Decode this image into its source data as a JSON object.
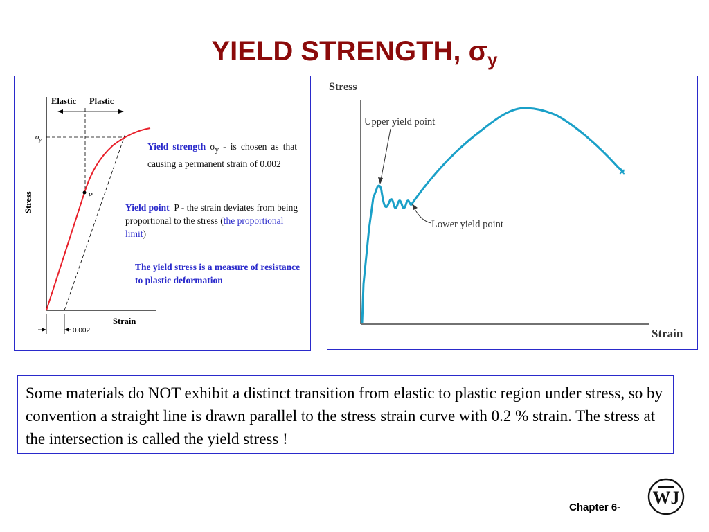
{
  "slide": {
    "title_main": "YIELD STRENGTH, ",
    "title_sigma": "σ",
    "title_sub": "y",
    "chapter_label": "Chapter 6-",
    "logo_letters": "WJ"
  },
  "left_diagram": {
    "elastic_label": "Elastic",
    "plastic_label": "Plastic",
    "sigma_axis_label": "σ",
    "sigma_axis_sub": "y",
    "stress_label": "Stress",
    "strain_label": "Strain",
    "p_label": "P",
    "offset_label": "0.002",
    "yield_strength_term": "Yield strength",
    "yield_strength_sigma": "σ",
    "yield_strength_sub": "y",
    "yield_strength_text": " - is chosen as that causing a permanent strain of 0.002",
    "yield_point_term": "Yield point",
    "yield_point_text_1": "P",
    "yield_point_text_2": " - the strain deviates from being proportional to the stress (",
    "proportional_limit": "the proportional limit",
    "yield_point_close": ")",
    "measure_text": "The yield stress is a measure of resistance to plastic deformation",
    "curve_color": "#e8202a"
  },
  "right_diagram": {
    "stress_label": "Stress",
    "strain_label": "Strain",
    "upper_yield_label": "Upper yield point",
    "lower_yield_label": "Lower yield point",
    "end_marker": "×",
    "curve_color": "#1aa0c8"
  },
  "info_box": {
    "text": "Some materials do NOT exhibit a distinct transition from elastic to plastic region under stress, so by convention a straight line is drawn parallel to the stress strain curve with 0.2 % strain. The stress at the intersection is called the yield stress !"
  }
}
